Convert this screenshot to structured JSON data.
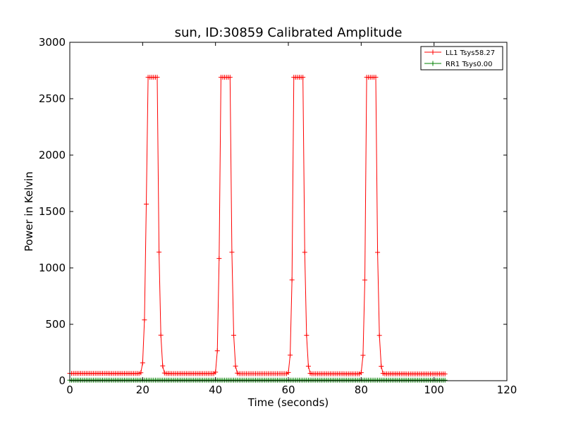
{
  "chart_data": {
    "type": "line",
    "title": "sun, ID:30859 Calibrated Amplitude",
    "xlabel": "Time (seconds)",
    "ylabel": "Power in Kelvin",
    "xlim": [
      0,
      120
    ],
    "ylim": [
      0,
      3000
    ],
    "xticks": [
      "0",
      "20",
      "40",
      "60",
      "80",
      "100",
      "120"
    ],
    "yticks": [
      "0",
      "500",
      "1000",
      "1500",
      "2000",
      "2500",
      "3000"
    ],
    "grid": false,
    "legend_position": "top-right",
    "marker": "+",
    "sample_interval": 0.5,
    "series": [
      {
        "name": "LL1 Tsys58.27",
        "color": "#ff0000",
        "baseline_start": 65,
        "baseline_end": 60,
        "x_range": [
          0,
          103
        ],
        "peaks": [
          {
            "start": 19.0,
            "plateau_start": 21.3,
            "plateau_end": 24.0,
            "end": 26.5,
            "height": 2690
          },
          {
            "start": 39.5,
            "plateau_start": 41.4,
            "plateau_end": 44.0,
            "end": 46.5,
            "height": 2690
          },
          {
            "start": 59.5,
            "plateau_start": 61.5,
            "plateau_end": 64.0,
            "end": 66.5,
            "height": 2690
          },
          {
            "start": 79.5,
            "plateau_start": 81.5,
            "plateau_end": 84.0,
            "end": 86.5,
            "height": 2690
          }
        ]
      },
      {
        "name": "RR1 Tsys0.00",
        "color": "#008000",
        "baseline_start": 5,
        "baseline_end": 5,
        "x_range": [
          0,
          103
        ],
        "peaks": []
      }
    ]
  }
}
